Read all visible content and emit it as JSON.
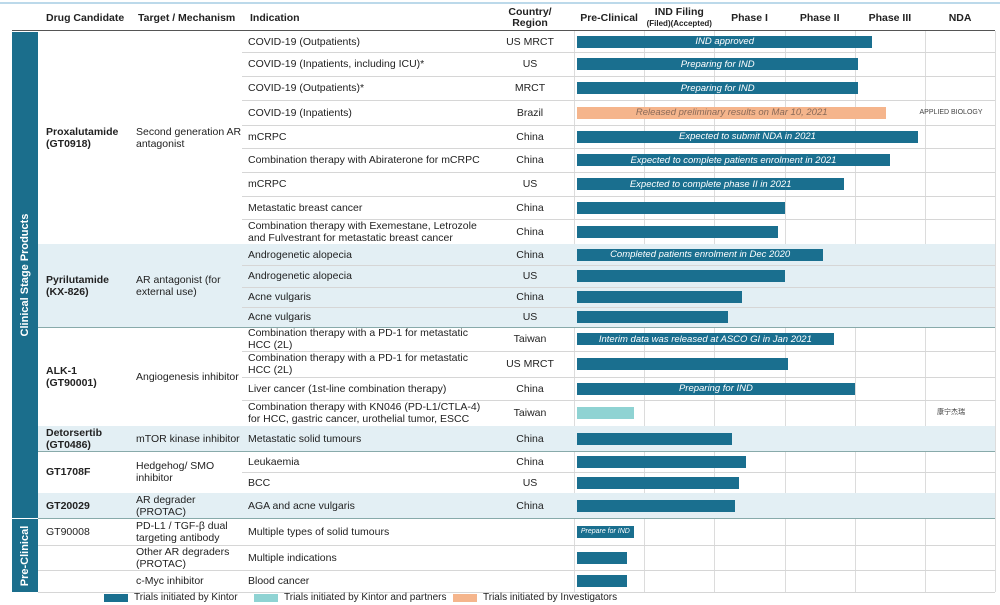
{
  "header": {
    "columns": [
      "Drug Candidate",
      "Target / Mechanism",
      "Indication",
      "Country/ Region",
      "Pre-Clinical",
      "IND Filing",
      "(Filed)(Accepted)",
      "Phase I",
      "Phase II",
      "Phase III",
      "NDA"
    ]
  },
  "legend": [
    {
      "label": "Trials initiated by Kintor",
      "color": "#1a6f8f"
    },
    {
      "label": "Trials initiated by Kintor and partners",
      "color": "#8fd3d3"
    },
    {
      "label": "Trials initiated by Investigators",
      "color": "#f5b58c"
    }
  ],
  "sections": [
    {
      "label": "Clinical Stage Products",
      "drugs": [
        {
          "name": "Proxalutamide (GT0918)",
          "target": "Second generation AR antagonist",
          "trials": [
            {
              "indication": "COVID-19 (Outpatients)",
              "region": "US MRCT",
              "stage": 4.25,
              "note": "IND approved",
              "color": "#1a6f8f"
            },
            {
              "indication": "COVID-19 (Inpatients, including ICU)*",
              "region": "US",
              "stage": 4.05,
              "note": "Preparing for IND",
              "color": "#1a6f8f"
            },
            {
              "indication": "COVID-19 (Outpatients)*",
              "region": "MRCT",
              "stage": 4.05,
              "note": "Preparing for IND",
              "color": "#1a6f8f"
            },
            {
              "indication": "COVID-19 (Inpatients)",
              "region": "Brazil",
              "stage": 4.45,
              "note": "Released preliminary results on Mar 10, 2021",
              "color": "#f5b58c",
              "partner": "APPLIED BIOLOGY"
            },
            {
              "indication": "mCRPC",
              "region": "China",
              "stage": 4.9,
              "note": "Expected to submit NDA in 2021",
              "color": "#1a6f8f"
            },
            {
              "indication": "Combination therapy with Abiraterone for mCRPC",
              "region": "China",
              "stage": 4.5,
              "note": "Expected to complete patients enrolment in 2021",
              "color": "#1a6f8f"
            },
            {
              "indication": "mCRPC",
              "region": "US",
              "stage": 3.85,
              "note": "Expected to complete phase II in 2021",
              "color": "#1a6f8f"
            },
            {
              "indication": "Metastatic breast cancer",
              "region": "China",
              "stage": 3,
              "color": "#1a6f8f"
            },
            {
              "indication": "Combination therapy with Exemestane, Letrozole and Fulvestrant for metastatic breast cancer",
              "region": "China",
              "stage": 2.9,
              "color": "#1a6f8f"
            }
          ]
        },
        {
          "name": "Pyrilutamide (KX-826)",
          "target": "AR antagonist (for external use)",
          "trials": [
            {
              "indication": "Androgenetic alopecia",
              "region": "China",
              "stage": 3.55,
              "note": "Completed patients enrolment in Dec 2020",
              "color": "#1a6f8f"
            },
            {
              "indication": "Androgenetic alopecia",
              "region": "US",
              "stage": 3,
              "color": "#1a6f8f"
            },
            {
              "indication": "Acne vulgaris",
              "region": "China",
              "stage": 2.4,
              "color": "#1a6f8f"
            },
            {
              "indication": "Acne vulgaris",
              "region": "US",
              "stage": 2.2,
              "color": "#1a6f8f"
            }
          ]
        },
        {
          "name": "ALK-1 (GT90001)",
          "target": "Angiogenesis inhibitor",
          "trials": [
            {
              "indication": "Combination therapy with a PD-1 for metastatic HCC (2L)",
              "region": "Taiwan",
              "stage": 3.7,
              "note": "Interim data was released at ASCO GI in Jan 2021",
              "color": "#1a6f8f"
            },
            {
              "indication": "Combination therapy with a PD-1 for metastatic HCC (2L)",
              "region": "US MRCT",
              "stage": 3.05,
              "color": "#1a6f8f"
            },
            {
              "indication": "Liver cancer (1st-line combination therapy)",
              "region": "China",
              "stage": 4,
              "note": "Preparing for IND",
              "color": "#1a6f8f"
            },
            {
              "indication": "Combination therapy with KN046 (PD-L1/CTLA-4) for HCC, gastric cancer, urothelial tumor, ESCC",
              "region": "Taiwan",
              "stage": 0.85,
              "color": "#8fd3d3",
              "partner": "康宁杰瑞"
            }
          ]
        },
        {
          "name": "Detorsertib (GT0486)",
          "target": "mTOR kinase inhibitor",
          "trials": [
            {
              "indication": "Metastatic solid tumours",
              "region": "China",
              "stage": 2.25,
              "color": "#1a6f8f"
            }
          ]
        },
        {
          "name": "GT1708F",
          "target": "Hedgehog/ SMO inhibitor",
          "trials": [
            {
              "indication": "Leukaemia",
              "region": "China",
              "stage": 2.45,
              "color": "#1a6f8f"
            },
            {
              "indication": "BCC",
              "region": "US",
              "stage": 2.35,
              "color": "#1a6f8f"
            }
          ]
        },
        {
          "name": "GT20029",
          "target": "AR degrader (PROTAC)",
          "trials": [
            {
              "indication": "AGA and acne vulgaris",
              "region": "China",
              "stage": 2.3,
              "color": "#1a6f8f"
            }
          ]
        }
      ]
    },
    {
      "label": "Pre-Clinical",
      "drugs": [
        {
          "name": "GT90008",
          "target": "PD-L1 / TGF-β dual targeting antibody",
          "trials": [
            {
              "indication": "Multiple types of solid tumours",
              "stage": 0.85,
              "note": "Prepare for IND",
              "color": "#1a6f8f"
            }
          ]
        },
        {
          "target": "Other AR degraders (PROTAC)",
          "trials": [
            {
              "indication": "Multiple indications",
              "stage": 0.75,
              "color": "#1a6f8f"
            }
          ]
        },
        {
          "target": "c-Myc inhibitor",
          "trials": [
            {
              "indication": "Blood cancer",
              "stage": 0.75,
              "color": "#1a6f8f"
            }
          ]
        }
      ]
    }
  ]
}
